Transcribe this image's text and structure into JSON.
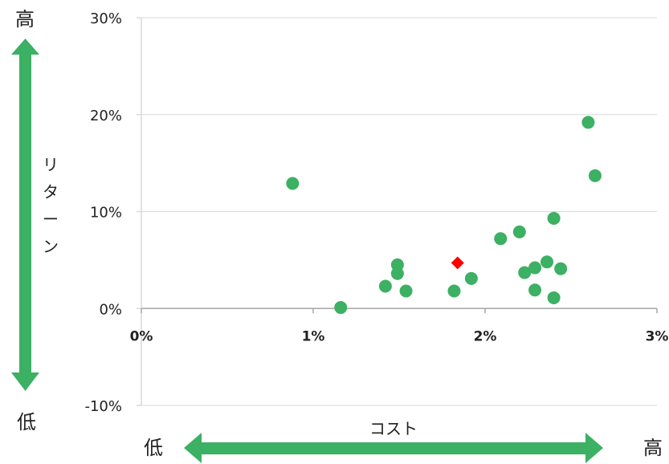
{
  "chart_data": {
    "type": "scatter",
    "title": "",
    "xlabel": "コスト",
    "ylabel": "リターン",
    "xlim": [
      0,
      3
    ],
    "ylim": [
      -10,
      30
    ],
    "x_ticks": [
      0,
      1,
      2,
      3
    ],
    "y_ticks": [
      -10,
      0,
      10,
      20,
      30
    ],
    "x_tick_labels": [
      "0%",
      "1%",
      "2%",
      "3%"
    ],
    "y_tick_labels": [
      "-10%",
      "0%",
      "10%",
      "20%",
      "30%"
    ],
    "unit": "%",
    "grid": "horizontal",
    "colors": {
      "series": "#3cb063",
      "highlight": "#ff0000",
      "arrow": "#3cb063",
      "grid": "#d9d9d9"
    },
    "series": [
      {
        "marker": "circle",
        "color": "#3cb063",
        "points": [
          {
            "x": 0.88,
            "y": 12.9
          },
          {
            "x": 1.16,
            "y": 0.1
          },
          {
            "x": 1.42,
            "y": 2.3
          },
          {
            "x": 1.49,
            "y": 4.5
          },
          {
            "x": 1.49,
            "y": 3.6
          },
          {
            "x": 1.54,
            "y": 1.8
          },
          {
            "x": 1.82,
            "y": 1.8
          },
          {
            "x": 1.92,
            "y": 3.1
          },
          {
            "x": 2.09,
            "y": 7.2
          },
          {
            "x": 2.2,
            "y": 7.9
          },
          {
            "x": 2.23,
            "y": 3.7
          },
          {
            "x": 2.29,
            "y": 4.2
          },
          {
            "x": 2.29,
            "y": 1.9
          },
          {
            "x": 2.36,
            "y": 4.8
          },
          {
            "x": 2.4,
            "y": 9.3
          },
          {
            "x": 2.4,
            "y": 1.1
          },
          {
            "x": 2.44,
            "y": 4.1
          },
          {
            "x": 2.6,
            "y": 19.2
          },
          {
            "x": 2.64,
            "y": 13.7
          }
        ]
      },
      {
        "marker": "diamond",
        "color": "#ff0000",
        "points": [
          {
            "x": 1.84,
            "y": 4.7
          }
        ]
      }
    ],
    "annotations": {
      "y_high": "高",
      "y_low": "低",
      "x_low": "低",
      "x_high": "高"
    }
  }
}
